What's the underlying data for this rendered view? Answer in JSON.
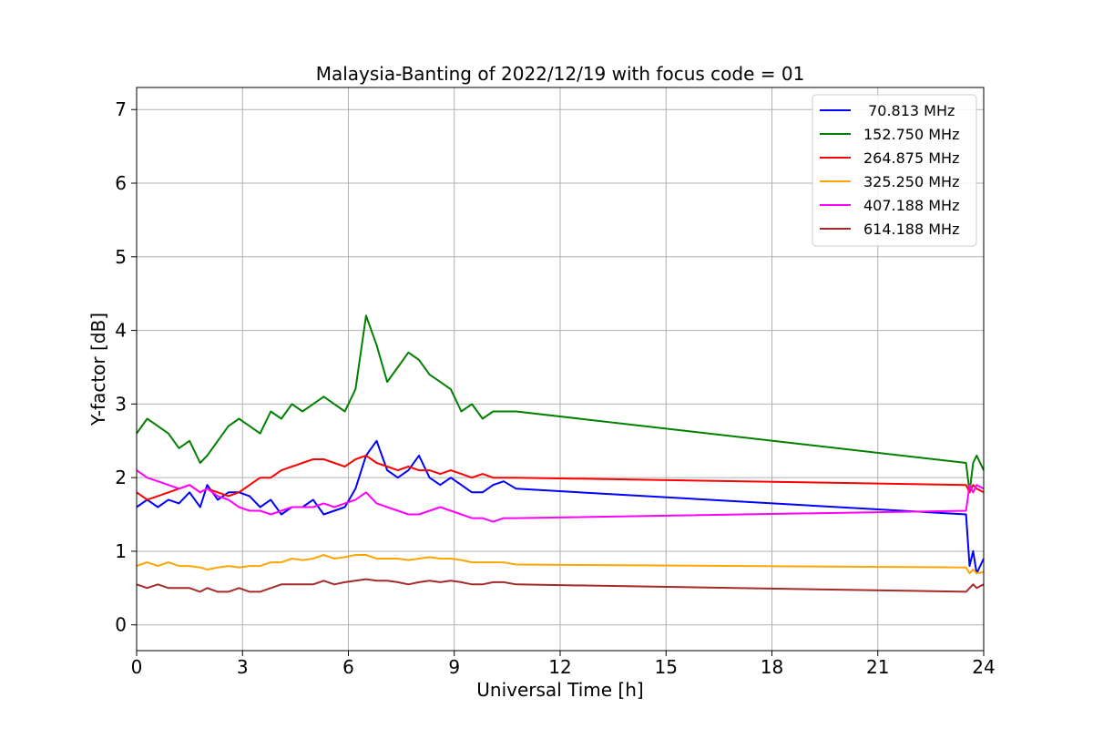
{
  "chart_data": {
    "type": "line",
    "title": "Malaysia-Banting of 2022/12/19 with focus code = 01",
    "xlabel": "Universal Time [h]",
    "ylabel": "Y-factor [dB]",
    "xlim": [
      0,
      24
    ],
    "ylim": [
      -0.35,
      7.3
    ],
    "x_ticks": [
      0,
      3,
      6,
      9,
      12,
      15,
      18,
      21,
      24
    ],
    "x_tick_labels": [
      "0",
      "3",
      "6",
      "9",
      "12",
      "15",
      "18",
      "21",
      "24"
    ],
    "y_ticks": [
      0,
      1,
      2,
      3,
      4,
      5,
      6,
      7
    ],
    "y_tick_labels": [
      "0",
      "1",
      "2",
      "3",
      "4",
      "5",
      "6",
      "7"
    ],
    "grid": true,
    "legend_position": "top-right",
    "series": [
      {
        "name": " 70.813 MHz",
        "color": "#0000ff",
        "x": [
          0,
          0.3,
          0.6,
          0.9,
          1.2,
          1.5,
          1.8,
          2.0,
          2.3,
          2.6,
          2.9,
          3.2,
          3.5,
          3.8,
          4.1,
          4.4,
          4.7,
          5.0,
          5.3,
          5.6,
          5.9,
          6.2,
          6.5,
          6.8,
          7.1,
          7.4,
          7.7,
          8.0,
          8.3,
          8.6,
          8.9,
          9.2,
          9.5,
          9.8,
          10.1,
          10.4,
          10.75,
          23.5,
          23.6,
          23.7,
          23.8,
          24.0
        ],
        "y": [
          1.6,
          1.7,
          1.6,
          1.7,
          1.65,
          1.8,
          1.6,
          1.9,
          1.7,
          1.8,
          1.8,
          1.75,
          1.6,
          1.7,
          1.5,
          1.6,
          1.6,
          1.7,
          1.5,
          1.55,
          1.6,
          1.85,
          2.3,
          2.5,
          2.1,
          2.0,
          2.1,
          2.3,
          2.0,
          1.9,
          2.0,
          1.9,
          1.8,
          1.8,
          1.9,
          1.95,
          1.85,
          1.5,
          0.8,
          1.0,
          0.7,
          0.9
        ]
      },
      {
        "name": "152.750 MHz",
        "color": "#008000",
        "x": [
          0,
          0.3,
          0.6,
          0.9,
          1.2,
          1.5,
          1.8,
          2.0,
          2.3,
          2.6,
          2.9,
          3.2,
          3.5,
          3.8,
          4.1,
          4.4,
          4.7,
          5.0,
          5.3,
          5.6,
          5.9,
          6.2,
          6.5,
          6.8,
          7.1,
          7.4,
          7.7,
          8.0,
          8.3,
          8.6,
          8.9,
          9.2,
          9.5,
          9.8,
          10.1,
          10.4,
          10.75,
          23.5,
          23.6,
          23.7,
          23.8,
          24.0
        ],
        "y": [
          2.6,
          2.8,
          2.7,
          2.6,
          2.4,
          2.5,
          2.2,
          2.3,
          2.5,
          2.7,
          2.8,
          2.7,
          2.6,
          2.9,
          2.8,
          3.0,
          2.9,
          3.0,
          3.1,
          3.0,
          2.9,
          3.2,
          4.2,
          3.8,
          3.3,
          3.5,
          3.7,
          3.6,
          3.4,
          3.3,
          3.2,
          2.9,
          3.0,
          2.8,
          2.9,
          2.9,
          2.9,
          2.2,
          1.8,
          2.2,
          2.3,
          2.1
        ]
      },
      {
        "name": "264.875 MHz",
        "color": "#ff0000",
        "x": [
          0,
          0.3,
          0.6,
          0.9,
          1.2,
          1.5,
          1.8,
          2.0,
          2.3,
          2.6,
          2.9,
          3.2,
          3.5,
          3.8,
          4.1,
          4.4,
          4.7,
          5.0,
          5.3,
          5.6,
          5.9,
          6.2,
          6.5,
          6.8,
          7.1,
          7.4,
          7.7,
          8.0,
          8.3,
          8.6,
          8.9,
          9.2,
          9.5,
          9.8,
          10.1,
          10.4,
          10.75,
          23.5,
          23.6,
          23.7,
          23.8,
          24.0
        ],
        "y": [
          1.8,
          1.7,
          1.75,
          1.8,
          1.85,
          1.9,
          1.8,
          1.85,
          1.8,
          1.75,
          1.8,
          1.9,
          2.0,
          2.0,
          2.1,
          2.15,
          2.2,
          2.25,
          2.25,
          2.2,
          2.15,
          2.25,
          2.3,
          2.2,
          2.15,
          2.1,
          2.15,
          2.1,
          2.1,
          2.05,
          2.1,
          2.05,
          2.0,
          2.05,
          2.0,
          2.0,
          2.0,
          1.9,
          1.8,
          1.9,
          1.85,
          1.8
        ]
      },
      {
        "name": "325.250 MHz",
        "color": "#ffa500",
        "x": [
          0,
          0.3,
          0.6,
          0.9,
          1.2,
          1.5,
          1.8,
          2.0,
          2.3,
          2.6,
          2.9,
          3.2,
          3.5,
          3.8,
          4.1,
          4.4,
          4.7,
          5.0,
          5.3,
          5.6,
          5.9,
          6.2,
          6.5,
          6.8,
          7.1,
          7.4,
          7.7,
          8.0,
          8.3,
          8.6,
          8.9,
          9.2,
          9.5,
          9.8,
          10.1,
          10.4,
          10.75,
          23.5,
          23.6,
          23.7,
          23.8,
          24.0
        ],
        "y": [
          0.8,
          0.85,
          0.8,
          0.85,
          0.8,
          0.8,
          0.78,
          0.75,
          0.78,
          0.8,
          0.78,
          0.8,
          0.8,
          0.85,
          0.85,
          0.9,
          0.88,
          0.9,
          0.95,
          0.9,
          0.92,
          0.95,
          0.95,
          0.9,
          0.9,
          0.9,
          0.88,
          0.9,
          0.92,
          0.9,
          0.9,
          0.88,
          0.85,
          0.85,
          0.85,
          0.85,
          0.82,
          0.78,
          0.7,
          0.75,
          0.7,
          0.72
        ]
      },
      {
        "name": "407.188 MHz",
        "color": "#ff00ff",
        "x": [
          0,
          0.3,
          0.6,
          0.9,
          1.2,
          1.5,
          1.8,
          2.0,
          2.3,
          2.6,
          2.9,
          3.2,
          3.5,
          3.8,
          4.1,
          4.4,
          4.7,
          5.0,
          5.3,
          5.6,
          5.9,
          6.2,
          6.5,
          6.8,
          7.1,
          7.4,
          7.7,
          8.0,
          8.3,
          8.6,
          8.9,
          9.2,
          9.5,
          9.8,
          10.1,
          10.4,
          10.75,
          23.5,
          23.6,
          23.7,
          23.8,
          24.0
        ],
        "y": [
          2.1,
          2.0,
          1.95,
          1.9,
          1.85,
          1.9,
          1.8,
          1.85,
          1.75,
          1.7,
          1.6,
          1.55,
          1.55,
          1.5,
          1.55,
          1.6,
          1.6,
          1.6,
          1.65,
          1.6,
          1.65,
          1.7,
          1.8,
          1.65,
          1.6,
          1.55,
          1.5,
          1.5,
          1.55,
          1.6,
          1.55,
          1.5,
          1.45,
          1.45,
          1.4,
          1.45,
          1.45,
          1.55,
          1.9,
          1.8,
          1.9,
          1.85
        ]
      },
      {
        "name": "614.188 MHz",
        "color": "#a52a2a",
        "x": [
          0,
          0.3,
          0.6,
          0.9,
          1.2,
          1.5,
          1.8,
          2.0,
          2.3,
          2.6,
          2.9,
          3.2,
          3.5,
          3.8,
          4.1,
          4.4,
          4.7,
          5.0,
          5.3,
          5.6,
          5.9,
          6.2,
          6.5,
          6.8,
          7.1,
          7.4,
          7.7,
          8.0,
          8.3,
          8.6,
          8.9,
          9.2,
          9.5,
          9.8,
          10.1,
          10.4,
          10.75,
          23.5,
          23.6,
          23.7,
          23.8,
          24.0
        ],
        "y": [
          0.55,
          0.5,
          0.55,
          0.5,
          0.5,
          0.5,
          0.45,
          0.5,
          0.45,
          0.45,
          0.5,
          0.45,
          0.45,
          0.5,
          0.55,
          0.55,
          0.55,
          0.55,
          0.6,
          0.55,
          0.58,
          0.6,
          0.62,
          0.6,
          0.6,
          0.58,
          0.55,
          0.58,
          0.6,
          0.58,
          0.6,
          0.58,
          0.55,
          0.55,
          0.58,
          0.58,
          0.55,
          0.45,
          0.5,
          0.55,
          0.5,
          0.55
        ]
      }
    ]
  }
}
